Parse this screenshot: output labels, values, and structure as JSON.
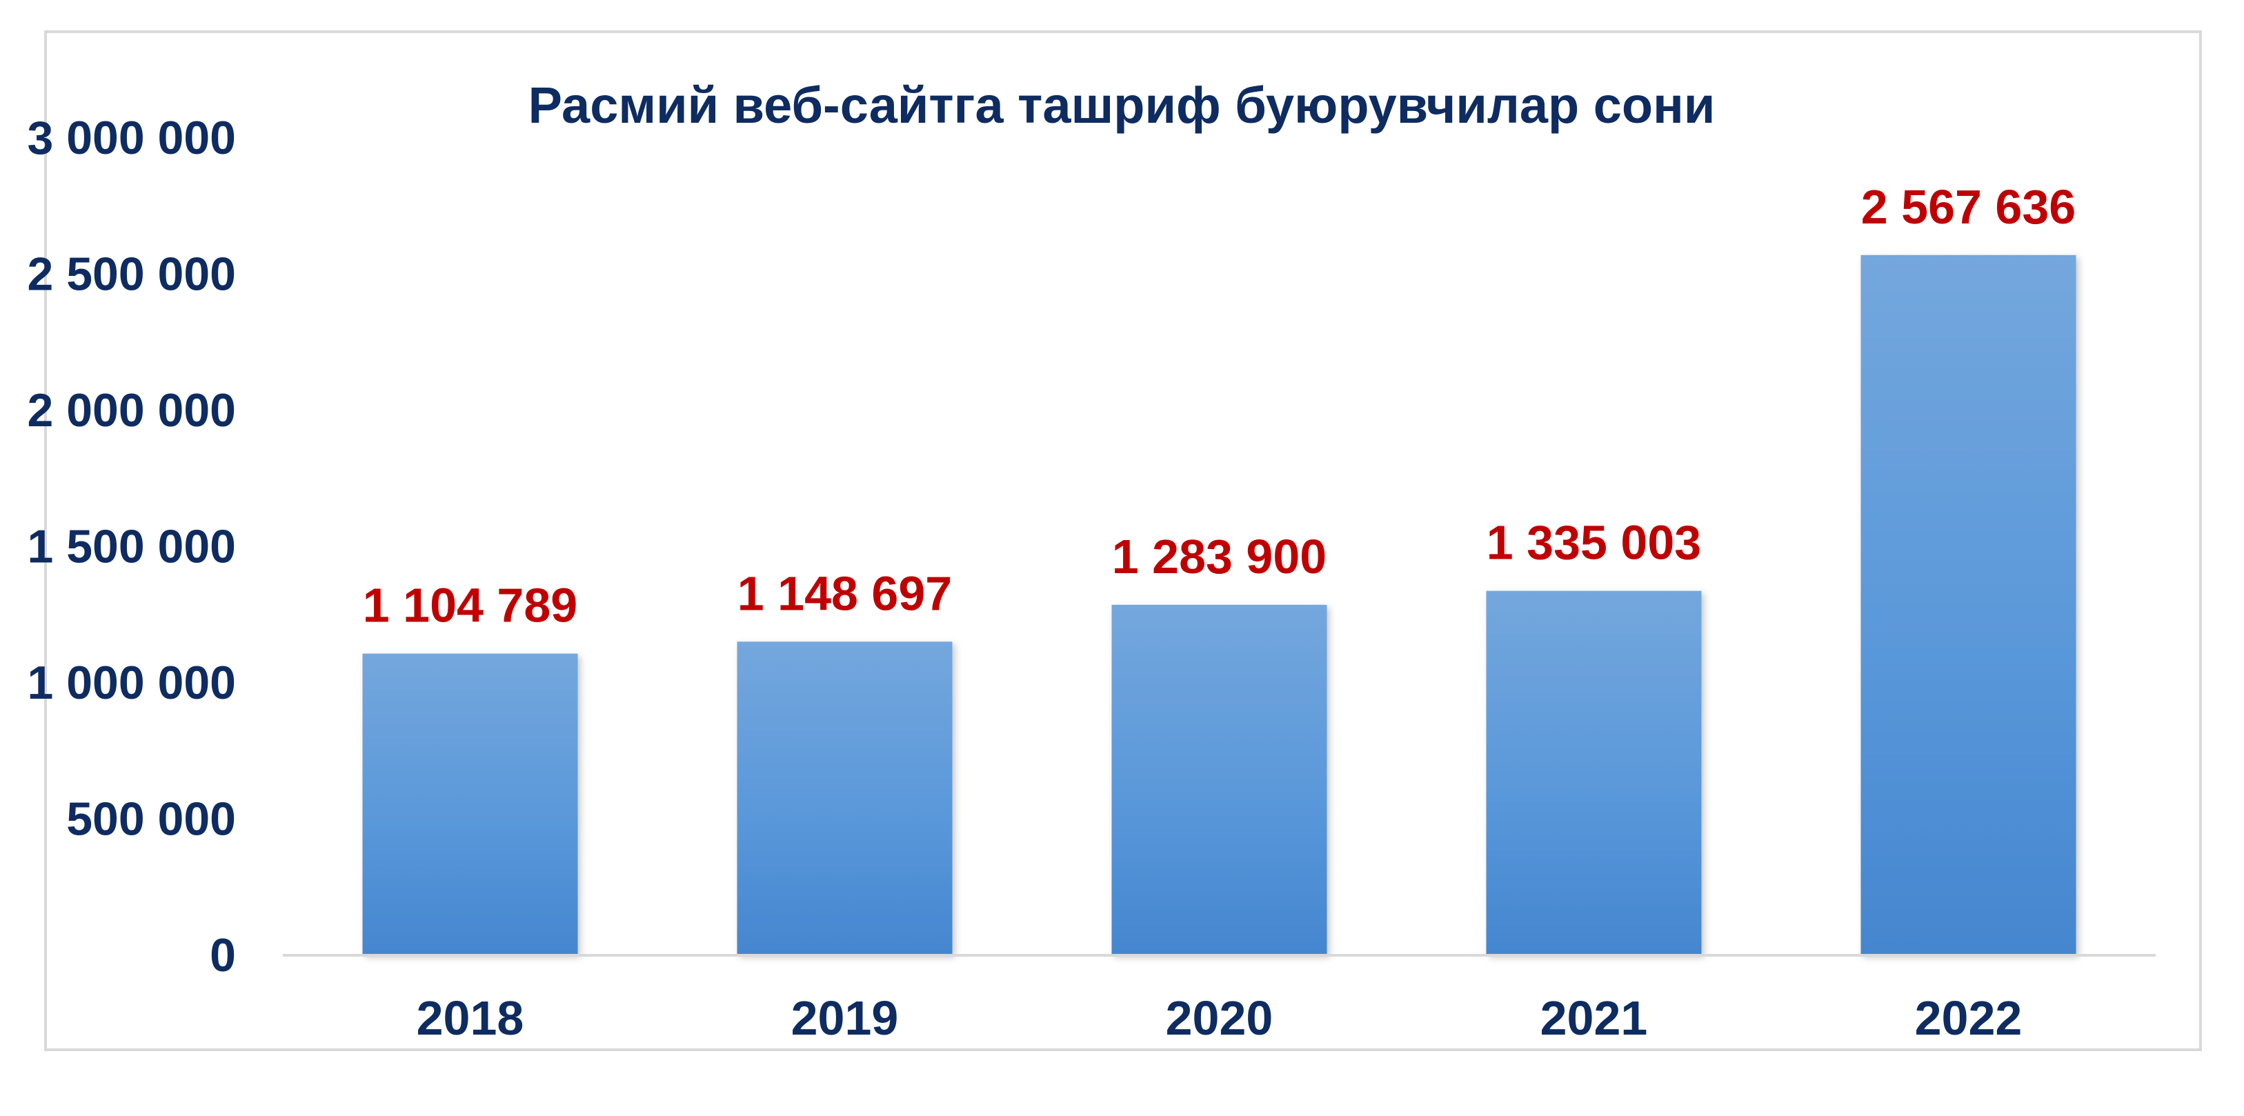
{
  "chart_data": {
    "type": "bar",
    "title": "Расмий веб-сайтга ташриф буюрувчилар сони",
    "xlabel": "",
    "ylabel": "",
    "categories": [
      "2018",
      "2019",
      "2020",
      "2021",
      "2022"
    ],
    "values": [
      1104789,
      1148697,
      1283900,
      1335003,
      2567636
    ],
    "data_labels": [
      "1 104 789",
      "1 148 697",
      "1 283 900",
      "1 335 003",
      "2 567 636"
    ],
    "ylim": [
      0,
      3000000
    ],
    "y_ticks": [
      {
        "value": 0,
        "label": "0"
      },
      {
        "value": 500000,
        "label": "500 000"
      },
      {
        "value": 1000000,
        "label": "1 000 000"
      },
      {
        "value": 1500000,
        "label": "1 500 000"
      },
      {
        "value": 2000000,
        "label": "2 000 000"
      },
      {
        "value": 2500000,
        "label": "2 500 000"
      },
      {
        "value": 3000000,
        "label": "3 000 000"
      }
    ],
    "grid": false,
    "legend": "none",
    "colors": {
      "bar_top": "#74a7dd",
      "bar_bottom": "#4486cf",
      "axis_text": "#0e2c61",
      "data_label": "#c00000",
      "axis_line": "#d9d9d9"
    }
  }
}
